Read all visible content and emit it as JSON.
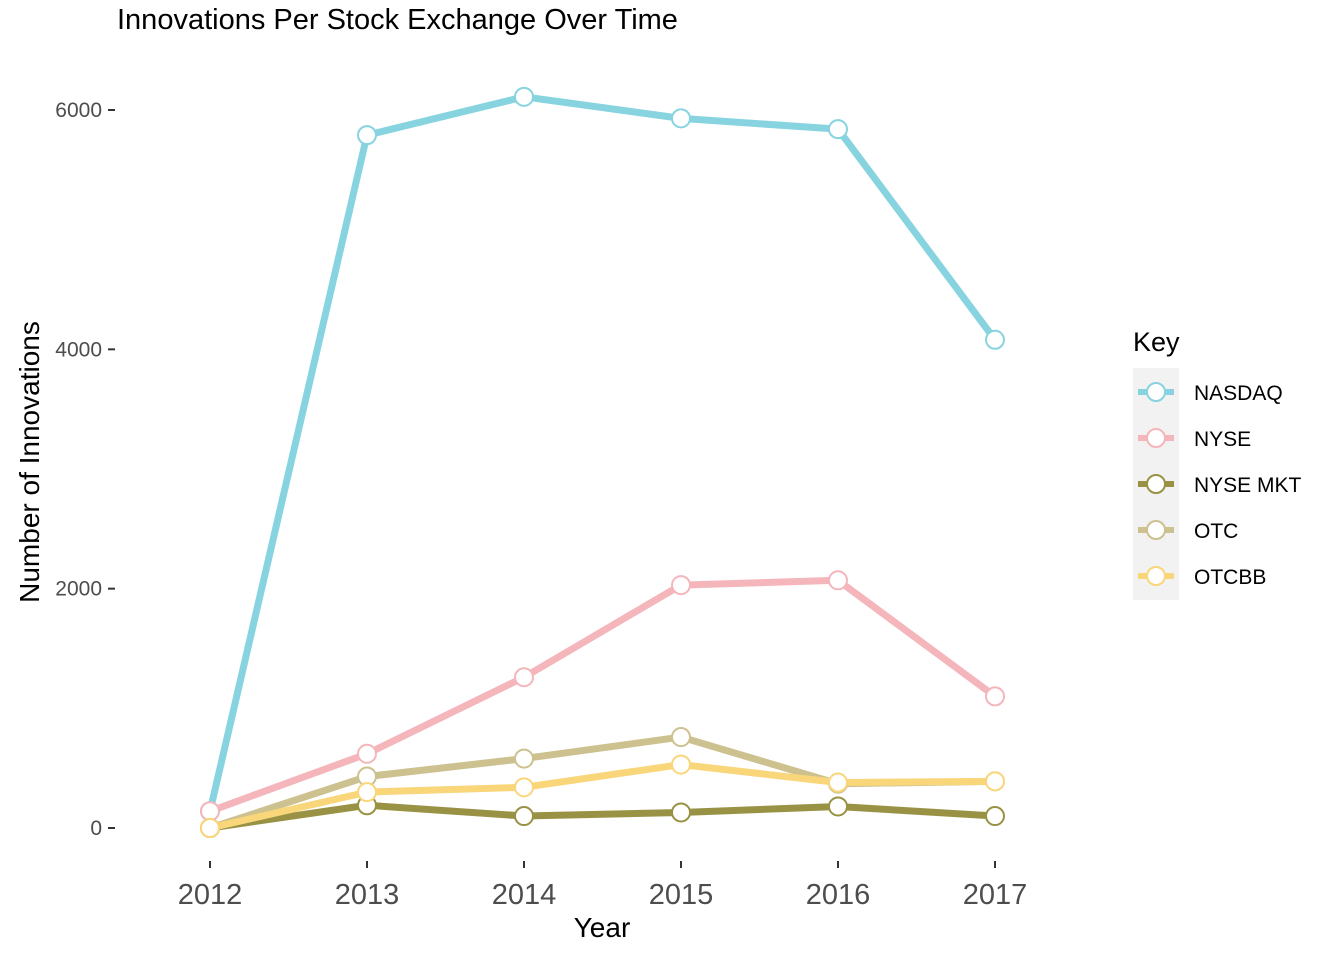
{
  "chart_data": {
    "type": "line",
    "title": "Innovations Per Stock Exchange Over Time",
    "xlabel": "Year",
    "ylabel": "Number of Innovations",
    "x": [
      2012,
      2013,
      2014,
      2015,
      2016,
      2017
    ],
    "x_tick_labels": [
      "2012",
      "2013",
      "2014",
      "2015",
      "2016",
      "2017"
    ],
    "y_ticks": [
      0,
      2000,
      4000,
      6000
    ],
    "y_tick_labels": [
      "0",
      "2000",
      "4000",
      "6000"
    ],
    "ylim": [
      -350,
      6350
    ],
    "grid": false,
    "legend_title": "Key",
    "legend_position": "right",
    "series": [
      {
        "name": "NASDAQ",
        "color": "#87D4E0",
        "values": [
          140,
          5790,
          6110,
          5930,
          5840,
          4080
        ]
      },
      {
        "name": "NYSE",
        "color": "#F4B6BB",
        "values": [
          140,
          620,
          1260,
          2030,
          2070,
          1100
        ]
      },
      {
        "name": "NYSE MKT",
        "color": "#999244",
        "values": [
          0,
          190,
          100,
          130,
          180,
          100
        ]
      },
      {
        "name": "OTC",
        "color": "#CCC18F",
        "values": [
          0,
          430,
          580,
          760,
          370,
          390
        ]
      },
      {
        "name": "OTCBB",
        "color": "#FAD67A",
        "values": [
          0,
          300,
          340,
          530,
          380,
          390
        ]
      }
    ]
  }
}
